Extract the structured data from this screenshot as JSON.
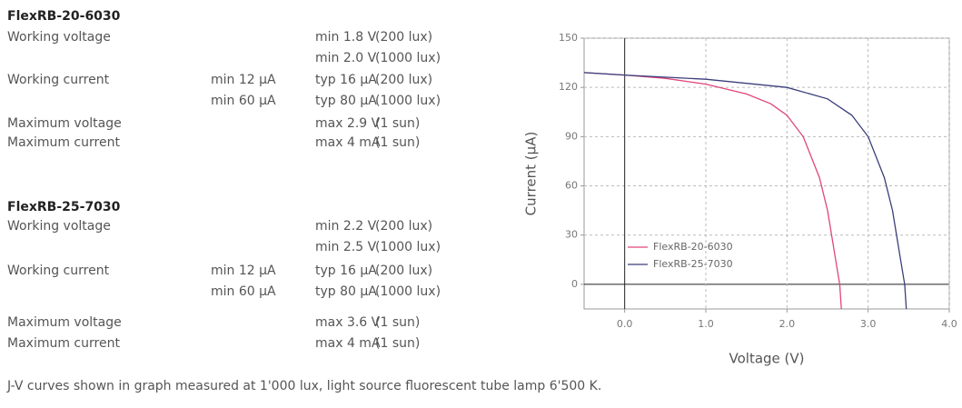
{
  "specs": [
    {
      "title": "FlexRB-20-6030",
      "rows": [
        {
          "label": "Working voltage",
          "value": "min 1.8 V",
          "condition": "(200 lux)"
        },
        {
          "value": "min 2.0 V",
          "condition": "(1000 lux)"
        },
        {
          "label": "Working current",
          "min": "min 12 µA",
          "value": "typ  16 µA",
          "condition": "(200 lux)"
        },
        {
          "min": "min 60 µA",
          "value": "typ  80 µA",
          "condition": "(1000 lux)"
        },
        {
          "label": "Maximum voltage",
          "value": "max 2.9 V",
          "condition": "(1 sun)"
        },
        {
          "label": "Maximum current",
          "value": "max 4 mA",
          "condition": "(1 sun)"
        }
      ]
    },
    {
      "title": "FlexRB-25-7030",
      "rows": [
        {
          "label": "Working voltage",
          "value": "min 2.2 V",
          "condition": "(200 lux)"
        },
        {
          "value": "min 2.5 V",
          "condition": "(1000 lux)"
        },
        {
          "label": "Working current",
          "min": "min 12 µA",
          "value": "typ  16 µA",
          "condition": "(200 lux)"
        },
        {
          "min": "min 60 µA",
          "value": "typ  80 µA",
          "condition": "(1000 lux)"
        },
        {
          "label": "Maximum voltage",
          "value": "max 3.6 V",
          "condition": "(1 sun)"
        },
        {
          "label": "Maximum current",
          "value": "max 4 mA",
          "condition": "(1 sun)"
        }
      ]
    }
  ],
  "footnote": "J-V curves shown in graph measured at 1'000 lux, light source fluorescent tube lamp 6'500 K.",
  "chart_data": {
    "type": "line",
    "xlabel": "Voltage (V)",
    "ylabel": "Current (µA)",
    "xlim": [
      -0.5,
      4.0
    ],
    "ylim": [
      -15,
      150
    ],
    "xticks": [
      {
        "value": 0,
        "label": "0.0"
      },
      {
        "value": 1,
        "label": "1.0"
      },
      {
        "value": 2,
        "label": "2.0"
      },
      {
        "value": 3,
        "label": "3.0"
      },
      {
        "value": 4,
        "label": "4.0"
      }
    ],
    "yticks": [
      0,
      30,
      60,
      90,
      120,
      150
    ],
    "grid": true,
    "legend": "lower left",
    "series": [
      {
        "name": "FlexRB-20-6030",
        "color": "#e0457a",
        "x": [
          -0.5,
          0,
          0.5,
          1.0,
          1.5,
          1.8,
          2.0,
          2.2,
          2.4,
          2.5,
          2.6,
          2.65,
          2.67
        ],
        "values": [
          129,
          127.5,
          125.5,
          122,
          116,
          110,
          103,
          90,
          65,
          45,
          15,
          0,
          -15
        ]
      },
      {
        "name": "FlexRB-25-7030",
        "color": "#3a3f7a",
        "x": [
          -0.5,
          0,
          1.0,
          2.0,
          2.5,
          2.8,
          3.0,
          3.2,
          3.3,
          3.4,
          3.45,
          3.47
        ],
        "values": [
          129,
          127.5,
          125,
          120,
          113,
          103,
          90,
          65,
          45,
          15,
          0,
          -15
        ]
      }
    ]
  }
}
